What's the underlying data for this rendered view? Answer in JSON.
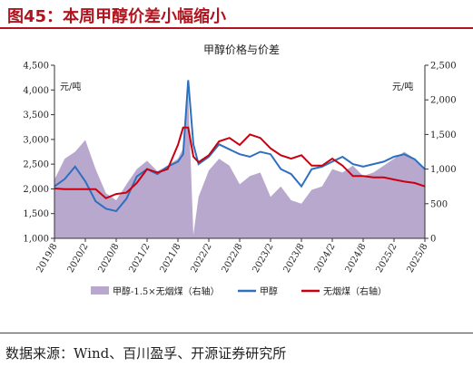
{
  "header": {
    "title": "图45：本周甲醇价差小幅缩小"
  },
  "footer": {
    "source": "数据来源：Wind、百川盈孚、开源证券研究所"
  },
  "chart_data": {
    "type": "line",
    "title": "甲醇价格与价差",
    "left_unit": "元/吨",
    "right_unit": "元/吨",
    "ylim_left": [
      1000,
      4500
    ],
    "ylim_right": [
      0,
      2500
    ],
    "y_ticks_left": [
      "1,000",
      "1,500",
      "2,000",
      "2,500",
      "3,000",
      "3,500",
      "4,000",
      "4,500"
    ],
    "y_ticks_right": [
      "0",
      "500",
      "1,000",
      "1,500",
      "2,000",
      "2,500"
    ],
    "x_ticks": [
      "2019/8",
      "2020/2",
      "2020/8",
      "2021/2",
      "2021/8",
      "2022/2",
      "2022/8",
      "2023/2",
      "2023/8",
      "2024/2",
      "2024/8",
      "2025/2",
      "2025/8"
    ],
    "x_range": [
      "2019/8",
      "2025/8"
    ],
    "grid": false,
    "legend_position": "bottom",
    "colors": {
      "spread": "#b9a8cd",
      "methanol": "#2e6fc0",
      "coal": "#c8000f"
    },
    "series": [
      {
        "name": "甲醇-1.5×无烟煤（右轴）",
        "type": "area",
        "axis": "right",
        "x": [
          "2019/8",
          "2019/10",
          "2019/12",
          "2020/2",
          "2020/4",
          "2020/6",
          "2020/8",
          "2020/10",
          "2020/12",
          "2021/2",
          "2021/4",
          "2021/6",
          "2021/8",
          "2021/9",
          "2021/10",
          "2021/11",
          "2021/12",
          "2022/2",
          "2022/4",
          "2022/6",
          "2022/8",
          "2022/10",
          "2022/12",
          "2023/2",
          "2023/4",
          "2023/6",
          "2023/8",
          "2023/10",
          "2023/12",
          "2024/2",
          "2024/4",
          "2024/6",
          "2024/8",
          "2024/10",
          "2024/12",
          "2025/2",
          "2025/4",
          "2025/6",
          "2025/8"
        ],
        "values": [
          850,
          1150,
          1250,
          1420,
          1000,
          650,
          550,
          780,
          1000,
          1120,
          970,
          1050,
          1150,
          1300,
          2100,
          50,
          600,
          980,
          1150,
          1050,
          780,
          900,
          950,
          600,
          750,
          550,
          500,
          700,
          750,
          1000,
          950,
          1050,
          900,
          950,
          1050,
          1150,
          1250,
          1150,
          1000
        ]
      },
      {
        "name": "甲醇",
        "type": "line",
        "axis": "left",
        "x": [
          "2019/8",
          "2019/10",
          "2019/12",
          "2020/2",
          "2020/4",
          "2020/6",
          "2020/8",
          "2020/10",
          "2020/12",
          "2021/2",
          "2021/4",
          "2021/6",
          "2021/8",
          "2021/9",
          "2021/10",
          "2021/11",
          "2021/12",
          "2022/2",
          "2022/4",
          "2022/6",
          "2022/8",
          "2022/10",
          "2022/12",
          "2023/2",
          "2023/4",
          "2023/6",
          "2023/8",
          "2023/10",
          "2023/12",
          "2024/2",
          "2024/4",
          "2024/6",
          "2024/8",
          "2024/10",
          "2024/12",
          "2025/2",
          "2025/4",
          "2025/6",
          "2025/8"
        ],
        "values": [
          2050,
          2200,
          2450,
          2150,
          1750,
          1600,
          1550,
          1800,
          2250,
          2400,
          2300,
          2450,
          2550,
          2700,
          4200,
          2900,
          2500,
          2650,
          2900,
          2800,
          2700,
          2650,
          2750,
          2700,
          2400,
          2300,
          2050,
          2400,
          2450,
          2550,
          2650,
          2500,
          2450,
          2500,
          2550,
          2650,
          2700,
          2600,
          2400
        ]
      },
      {
        "name": "无烟煤（右轴）",
        "type": "line",
        "axis": "right",
        "x": [
          "2019/8",
          "2019/10",
          "2019/12",
          "2020/2",
          "2020/4",
          "2020/6",
          "2020/8",
          "2020/10",
          "2020/12",
          "2021/2",
          "2021/4",
          "2021/6",
          "2021/8",
          "2021/9",
          "2021/10",
          "2021/11",
          "2021/12",
          "2022/2",
          "2022/4",
          "2022/6",
          "2022/8",
          "2022/10",
          "2022/12",
          "2023/2",
          "2023/4",
          "2023/6",
          "2023/8",
          "2023/10",
          "2023/12",
          "2024/2",
          "2024/4",
          "2024/6",
          "2024/8",
          "2024/10",
          "2024/12",
          "2025/2",
          "2025/4",
          "2025/6",
          "2025/8"
        ],
        "values": [
          720,
          710,
          710,
          710,
          710,
          580,
          640,
          660,
          800,
          1000,
          950,
          1000,
          1350,
          1600,
          1600,
          1180,
          1100,
          1200,
          1400,
          1450,
          1350,
          1500,
          1450,
          1300,
          1200,
          1150,
          1200,
          1050,
          1050,
          1150,
          1050,
          900,
          900,
          880,
          880,
          850,
          820,
          800,
          750
        ]
      }
    ]
  }
}
